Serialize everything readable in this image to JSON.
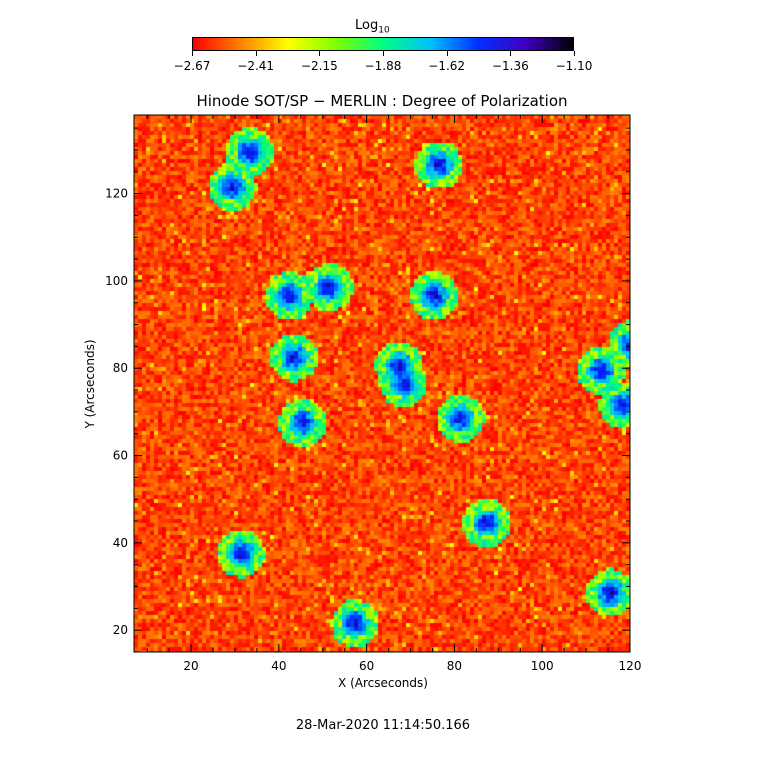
{
  "colorbar": {
    "title": "Log",
    "title_sub": "10",
    "ticks": [
      "−2.67",
      "−2.41",
      "−2.15",
      "−1.88",
      "−1.62",
      "−1.36",
      "−1.10"
    ],
    "colors": [
      "#ff0000",
      "#ff8000",
      "#ffff00",
      "#80ff00",
      "#00ff80",
      "#00c0ff",
      "#0030ff",
      "#4000c0",
      "#000000"
    ]
  },
  "timestamp": "28-Mar-2020 11:14:50.166",
  "chart_data": {
    "type": "heatmap",
    "title": "Hinode SOT/SP − MERLIN : Degree of Polarization",
    "xlabel": "X (Arcseconds)",
    "ylabel": "Y (Arcseconds)",
    "xlim": [
      7,
      120
    ],
    "ylim": [
      15,
      138
    ],
    "xticks": [
      20,
      40,
      60,
      80,
      100,
      120
    ],
    "yticks": [
      20,
      40,
      60,
      80,
      100,
      120
    ],
    "colorscale_log10_range": [
      -2.67,
      -1.1
    ],
    "high_polarization_patches": [
      {
        "x": 29,
        "y": 122
      },
      {
        "x": 33,
        "y": 130
      },
      {
        "x": 42,
        "y": 97
      },
      {
        "x": 43,
        "y": 83
      },
      {
        "x": 51,
        "y": 99
      },
      {
        "x": 75,
        "y": 97
      },
      {
        "x": 67,
        "y": 81
      },
      {
        "x": 68,
        "y": 77
      },
      {
        "x": 81,
        "y": 69
      },
      {
        "x": 113,
        "y": 80
      },
      {
        "x": 118,
        "y": 72
      },
      {
        "x": 87,
        "y": 45
      },
      {
        "x": 31,
        "y": 38
      },
      {
        "x": 115,
        "y": 29
      },
      {
        "x": 120,
        "y": 86
      },
      {
        "x": 57,
        "y": 22
      },
      {
        "x": 76,
        "y": 127
      },
      {
        "x": 45,
        "y": 68
      }
    ]
  }
}
